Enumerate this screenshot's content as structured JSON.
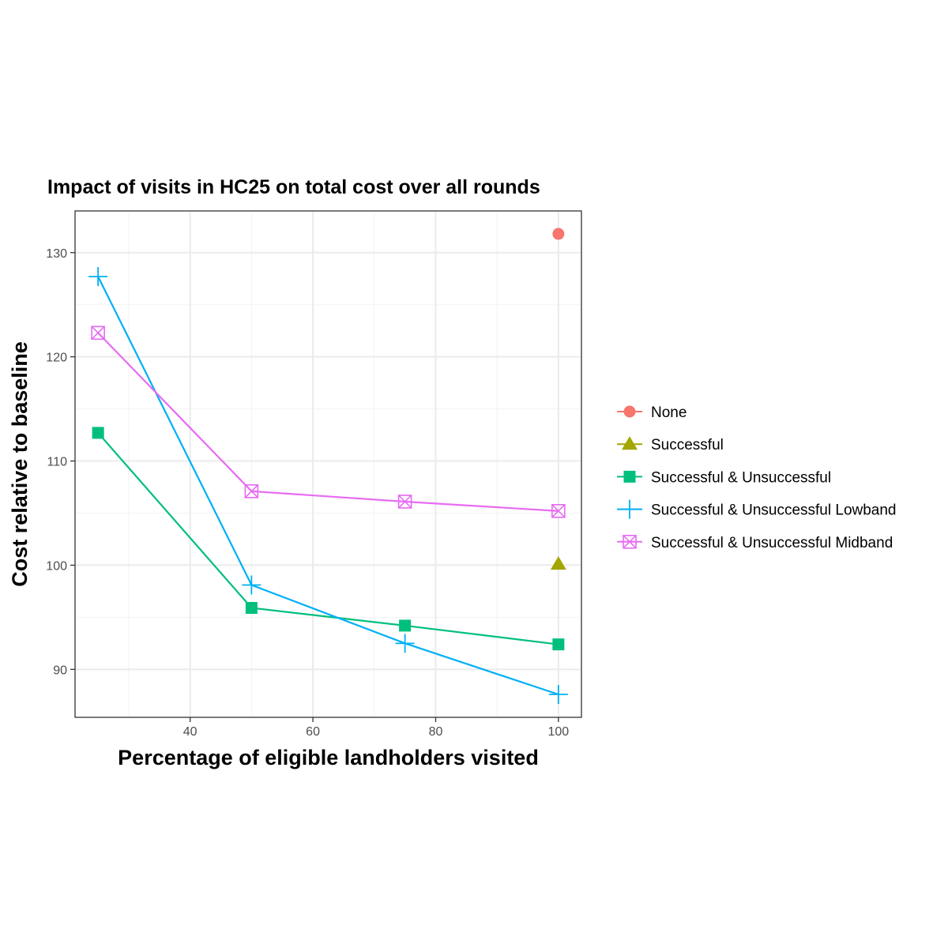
{
  "chart_data": {
    "type": "line",
    "title": "Impact of visits in HC25 on total cost over all rounds",
    "xlabel": "Percentage of eligible landholders visited",
    "ylabel": "Cost relative to baseline",
    "xlim": [
      21.25,
      103.75
    ],
    "ylim": [
      85.4,
      134.0
    ],
    "x_ticks": [
      40,
      60,
      80,
      100
    ],
    "y_ticks": [
      90,
      100,
      110,
      120,
      130
    ],
    "grid": true,
    "legend_position": "right",
    "series": [
      {
        "name": "None",
        "color": "#F8766D",
        "marker": "circle",
        "points": [
          [
            100,
            131.8
          ]
        ]
      },
      {
        "name": "Successful",
        "color": "#A3A500",
        "marker": "triangle",
        "points": [
          [
            100,
            100.1
          ]
        ]
      },
      {
        "name": "Successful & Unsuccessful",
        "color": "#00BF7D",
        "marker": "square",
        "points": [
          [
            25,
            112.7
          ],
          [
            50,
            95.9
          ],
          [
            75,
            94.2
          ],
          [
            100,
            92.4
          ]
        ]
      },
      {
        "name": "Successful & Unsuccessful Lowband",
        "color": "#00B0F6",
        "marker": "plus",
        "points": [
          [
            25,
            127.7
          ],
          [
            50,
            98.1
          ],
          [
            75,
            92.5
          ],
          [
            100,
            87.6
          ]
        ]
      },
      {
        "name": "Successful & Unsuccessful Midband",
        "color": "#E76BF3",
        "marker": "square-cross",
        "points": [
          [
            25,
            122.3
          ],
          [
            50,
            107.1
          ],
          [
            75,
            106.1
          ],
          [
            100,
            105.2
          ]
        ]
      }
    ]
  }
}
